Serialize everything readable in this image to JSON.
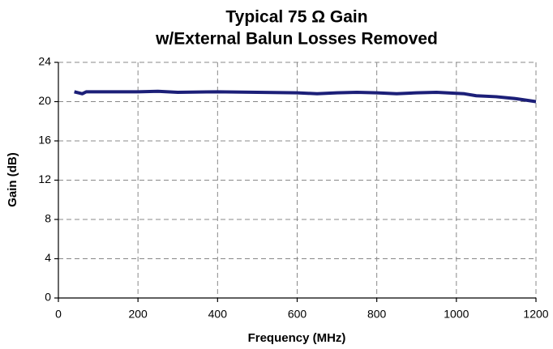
{
  "chart_data": {
    "type": "line",
    "title": "Typical 75 Ω Gain",
    "subtitle": "w/External Balun Losses Removed",
    "x_label": "Frequency (MHz)",
    "y_label": "Gain (dB)",
    "x": [
      40,
      50,
      60,
      70,
      100,
      200,
      250,
      300,
      400,
      500,
      600,
      650,
      700,
      750,
      800,
      850,
      900,
      950,
      1000,
      1020,
      1050,
      1100,
      1150,
      1200
    ],
    "series": [
      {
        "name": "Gain",
        "color": "#1c1f78",
        "values": [
          21.0,
          20.9,
          20.8,
          21.0,
          21.0,
          21.0,
          21.05,
          20.95,
          21.0,
          20.95,
          20.9,
          20.8,
          20.9,
          20.95,
          20.9,
          20.8,
          20.9,
          20.95,
          20.85,
          20.8,
          20.6,
          20.5,
          20.3,
          20.0
        ]
      }
    ],
    "xlim": [
      0,
      1200
    ],
    "xticks": [
      0,
      200,
      400,
      600,
      800,
      1000,
      1200
    ],
    "ylim": [
      0,
      24
    ],
    "yticks": [
      0,
      4,
      8,
      12,
      16,
      20,
      24
    ],
    "grid": true
  }
}
